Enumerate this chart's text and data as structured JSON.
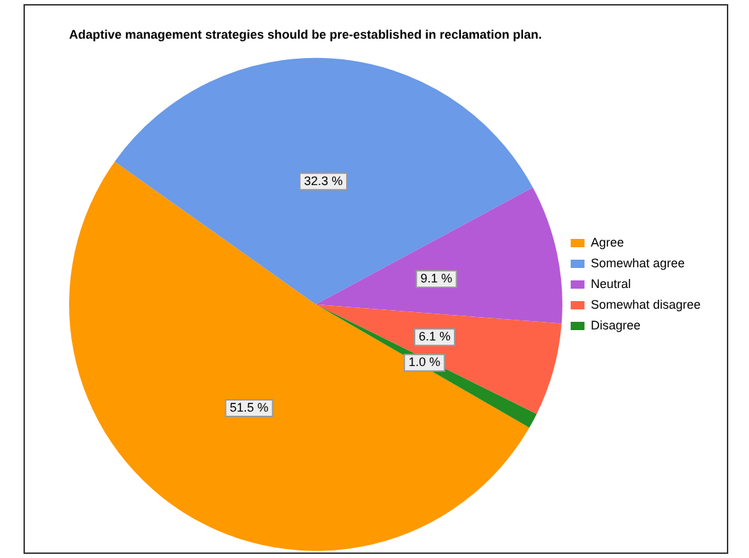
{
  "chart_data": {
    "type": "pie",
    "title": "Adaptive management strategies should be pre-established in reclamation plan.",
    "categories": [
      "Agree",
      "Somewhat agree",
      "Neutral",
      "Somewhat disagree",
      "Disagree"
    ],
    "values": [
      51.5,
      32.3,
      9.1,
      6.1,
      1.0
    ],
    "value_labels": [
      "51.5 %",
      "32.3 %",
      "9.1 %",
      "6.1 %",
      "1.0 %"
    ],
    "colors": [
      "#ff9900",
      "#6a9ae8",
      "#b45ad6",
      "#ff6347",
      "#228b22"
    ],
    "legend": "right"
  }
}
